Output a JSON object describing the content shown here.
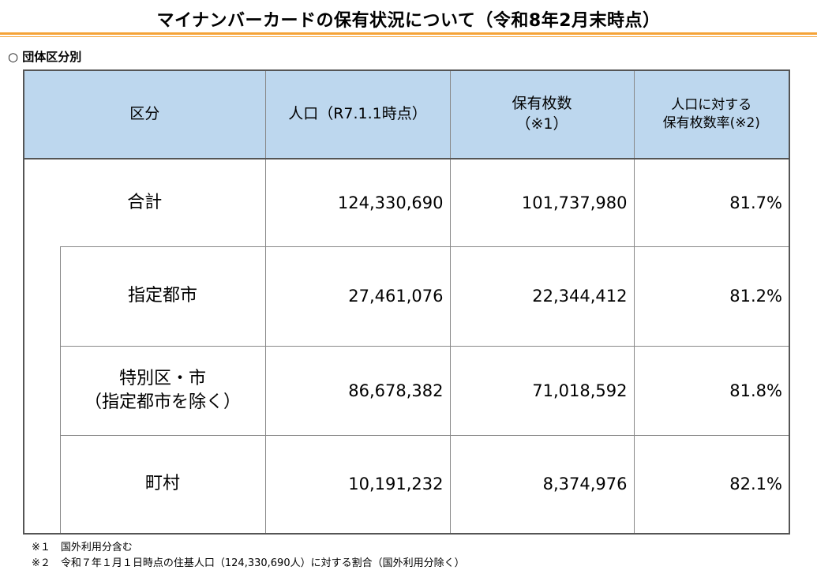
{
  "title": "マイナンバーカードの保有状況について（令和8年2月末時点）",
  "section": "○ 団体区分別",
  "header": {
    "col1": "区分",
    "col2": "人口（R7.1.1時点）",
    "col3_line1": "保有枚数",
    "col3_line2": "（※1）",
    "col4_line1": "人口に対する",
    "col4_line2": "保有枚数率(※2)"
  },
  "rows": [
    {
      "label": "合計",
      "population": "124,330,690",
      "count": "101,737,980",
      "rate": "81.7%"
    },
    {
      "label": "指定都市",
      "population": "27,461,076",
      "count": "22,344,412",
      "rate": "81.2%"
    },
    {
      "label_line1": "特別区・市",
      "label_line2": "（指定都市を除く）",
      "population": "86,678,382",
      "count": "71,018,592",
      "rate": "81.8%"
    },
    {
      "label": "町村",
      "population": "10,191,232",
      "count": "8,374,976",
      "rate": "82.1%"
    }
  ],
  "notes": [
    "※１　国外利用分含む",
    "※２　令和７年１月１日時点の住基人口（124,330,690人）に対する割合（国外利用分除く）"
  ]
}
